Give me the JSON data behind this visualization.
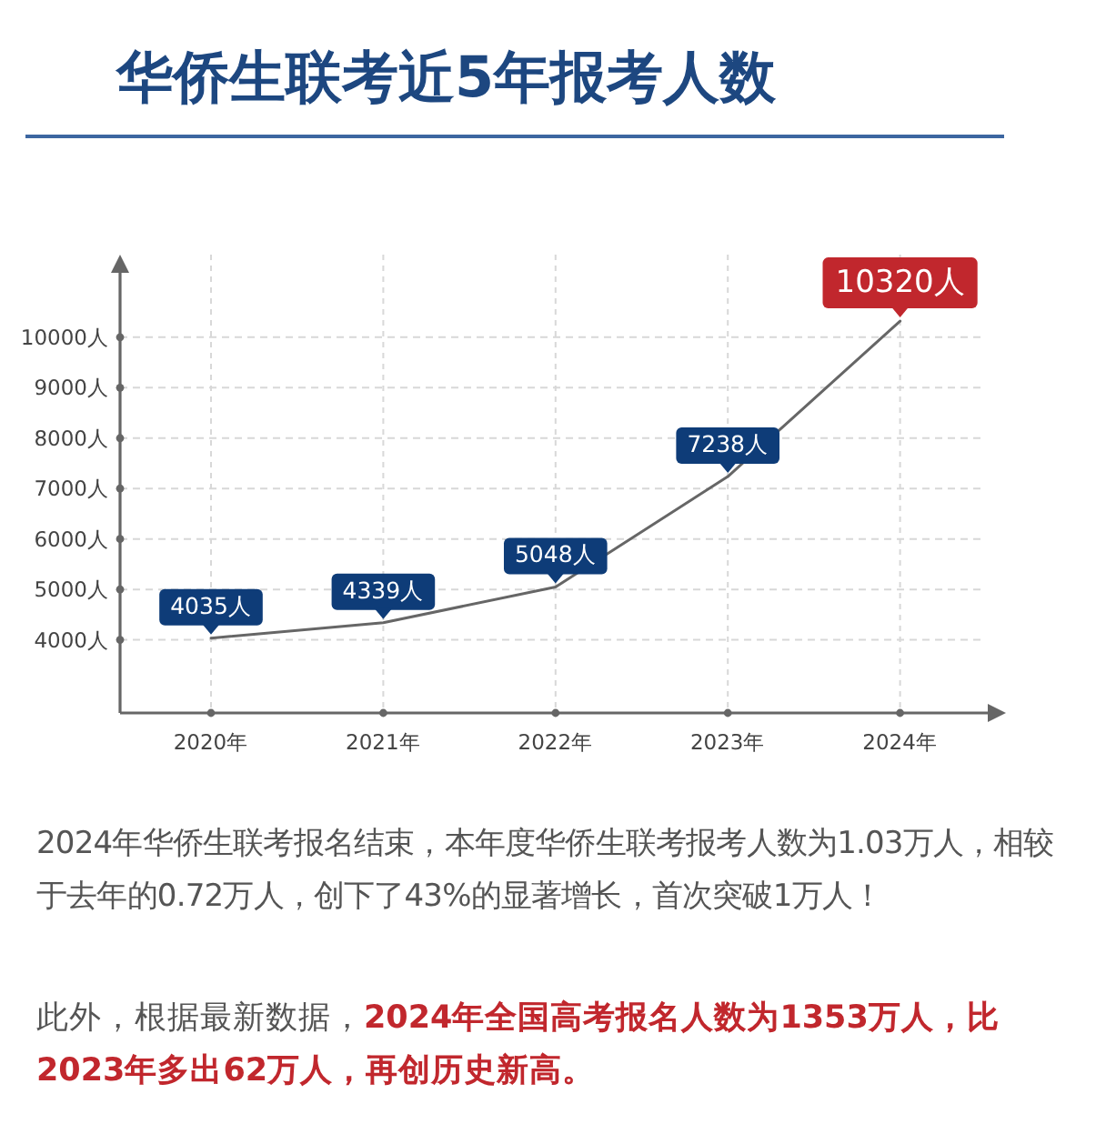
{
  "chart_data": {
    "type": "line",
    "title": "华侨生联考近5年报考人数",
    "categories": [
      "2020年",
      "2021年",
      "2022年",
      "2023年",
      "2024年"
    ],
    "series": [
      {
        "color": "#666666",
        "values": [
          4035,
          4339,
          5048,
          7238,
          10320
        ],
        "value_labels": [
          "4035人",
          "4339人",
          "5048人",
          "7238人",
          "10320人"
        ]
      }
    ],
    "ylim": [
      2550,
      11350
    ],
    "yticks": [
      {
        "value": 4000,
        "label": "4000人"
      },
      {
        "value": 5000,
        "label": "5000人"
      },
      {
        "value": 6000,
        "label": "6000人"
      },
      {
        "value": 7000,
        "label": "7000人"
      },
      {
        "value": 8000,
        "label": "8000人"
      },
      {
        "value": 9000,
        "label": "9000人"
      },
      {
        "value": 10000,
        "label": "10000人"
      }
    ],
    "grid": true,
    "marker": "none",
    "line_style": "solid",
    "annotations": [
      "2024年华侨生联考报名结束，本年度华侨生联考报考人数为1.03万人，相较于去年的0.72万人，创下了43%的显著增长，首次突破1万人！",
      "此外，根据最新数据，",
      "2024年全国高考报名人数为1353万人，比2023年多出62万人，再创历史新高。"
    ]
  }
}
